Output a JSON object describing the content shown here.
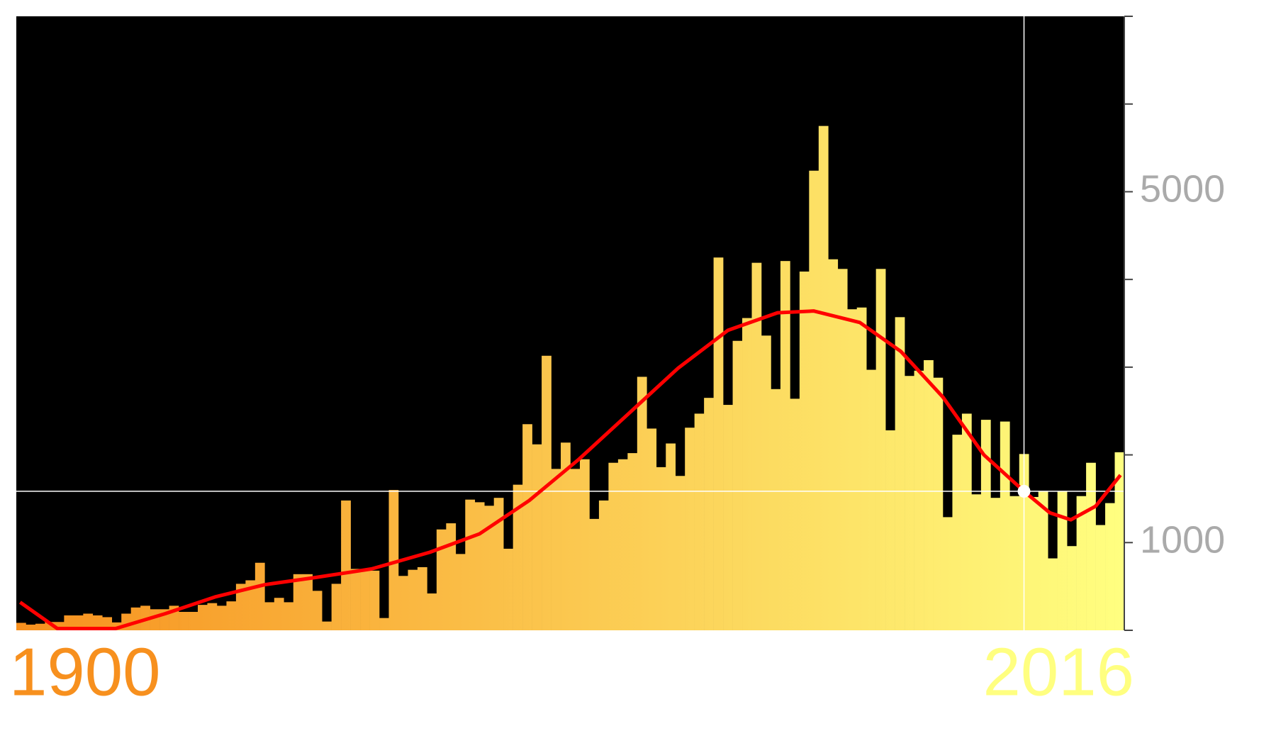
{
  "chart_data": {
    "type": "histogram",
    "bins": [
      1900,
      1901,
      1902,
      1903,
      1904,
      1905,
      1906,
      1907,
      1908,
      1909,
      1910,
      1911,
      1912,
      1913,
      1914,
      1915,
      1916,
      1917,
      1918,
      1919,
      1920,
      1921,
      1922,
      1923,
      1924,
      1925,
      1926,
      1927,
      1928,
      1929,
      1930,
      1931,
      1932,
      1933,
      1934,
      1935,
      1936,
      1937,
      1938,
      1939,
      1940,
      1941,
      1942,
      1943,
      1944,
      1945,
      1946,
      1947,
      1948,
      1949,
      1950,
      1951,
      1952,
      1953,
      1954,
      1955,
      1956,
      1957,
      1958,
      1959,
      1960,
      1961,
      1962,
      1963,
      1964,
      1965,
      1966,
      1967,
      1968,
      1969,
      1970,
      1971,
      1972,
      1973,
      1974,
      1975,
      1976,
      1977,
      1978,
      1979,
      1980,
      1981,
      1982,
      1983,
      1984,
      1985,
      1986,
      1987,
      1988,
      1989,
      1990,
      1991,
      1992,
      1993,
      1994,
      1995,
      1996,
      1997,
      1998,
      1999,
      2000,
      2001,
      2002,
      2003,
      2004,
      2005,
      2006,
      2007,
      2008,
      2009,
      2010,
      2011,
      2012,
      2013,
      2014,
      2015,
      2016
    ],
    "values": [
      85,
      65,
      75,
      95,
      95,
      170,
      170,
      190,
      170,
      150,
      90,
      190,
      260,
      280,
      240,
      240,
      280,
      210,
      210,
      290,
      310,
      280,
      330,
      530,
      570,
      770,
      320,
      370,
      320,
      640,
      640,
      450,
      100,
      530,
      1480,
      700,
      690,
      680,
      140,
      1600,
      620,
      690,
      720,
      420,
      1150,
      1220,
      870,
      1490,
      1460,
      1420,
      1510,
      930,
      1660,
      2350,
      2120,
      3130,
      1840,
      2140,
      1840,
      1950,
      1270,
      1480,
      1910,
      1950,
      2020,
      2890,
      2300,
      1860,
      2130,
      1760,
      2310,
      2470,
      2650,
      4250,
      2570,
      3300,
      3560,
      4190,
      3360,
      2750,
      4210,
      2640,
      4090,
      5240,
      5750,
      4230,
      4120,
      3660,
      3680,
      2970,
      4120,
      2280,
      3570,
      2900,
      2960,
      3080,
      2880,
      1290,
      2230,
      2470,
      1550,
      2400,
      1510,
      2380,
      1530,
      2010,
      1520,
      1580,
      820,
      1580,
      960,
      1530,
      1910,
      1200,
      1450,
      2030
    ],
    "gradient": [
      "#f7901e",
      "#ffff80"
    ],
    "background": "#000000",
    "xlim": [
      1900,
      2016
    ],
    "xticks": [
      {
        "value": 1900,
        "label": "1900",
        "color": "#f7901e"
      },
      {
        "value": 2016,
        "label": "2016",
        "color": "#ffff80"
      }
    ],
    "ylim": [
      0,
      7000
    ],
    "yticks": [
      1000,
      5000
    ],
    "minor_yticks": [
      0,
      2000,
      3000,
      4000,
      6000,
      7000
    ],
    "trend": {
      "color": "#ff0000",
      "x": [
        1900.4,
        1904.3,
        1910.4,
        1915.6,
        1920.8,
        1926,
        1931.2,
        1937.2,
        1943.3,
        1948.5,
        1953.7,
        1958.9,
        1964.1,
        1969.3,
        1974.5,
        1979.7,
        1983.5,
        1988.3,
        1992.6,
        1997,
        2001.3,
        2005.5,
        2008.2,
        2010.4,
        2013,
        2015.6
      ],
      "y": [
        320,
        20,
        20,
        190,
        380,
        520,
        600,
        700,
        890,
        1100,
        1480,
        1950,
        2470,
        2990,
        3420,
        3620,
        3640,
        3510,
        3180,
        2660,
        2000,
        1585,
        1340,
        1260,
        1415,
        1770
      ]
    },
    "cursor": {
      "x": 2005.5,
      "y": 1585
    }
  }
}
